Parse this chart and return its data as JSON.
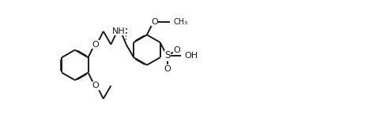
{
  "bg": "#ffffff",
  "lc": "#1a1a1a",
  "lw": 1.4,
  "fs": 8.0,
  "figsize": [
    4.72,
    1.58
  ],
  "dpi": 100,
  "xlim": [
    0,
    47.2
  ],
  "ylim": [
    0,
    15.8
  ]
}
